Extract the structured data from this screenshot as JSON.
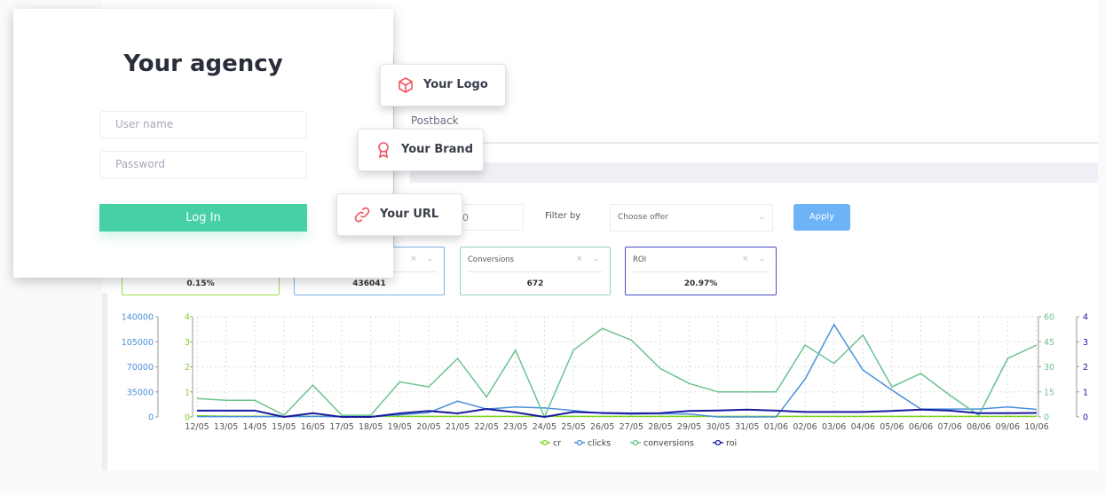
{
  "login": {
    "title": "Your agency",
    "username_placeholder": "User name",
    "password_placeholder": "Password",
    "login_label": "Log In"
  },
  "features": [
    {
      "label": "Your Logo",
      "icon": "cube-icon"
    },
    {
      "label": "Your Brand",
      "icon": "award-ribbon-icon"
    },
    {
      "label": "Your URL",
      "icon": "link-icon"
    }
  ],
  "nav": {
    "postback": "Postback"
  },
  "filters": {
    "partial_value": "0",
    "filter_by_label": "Filter by",
    "offer_select": "Choose offer",
    "apply_label": "Apply"
  },
  "cards": [
    {
      "label": "",
      "value": "0.15%",
      "color": "#9be04a"
    },
    {
      "label": "",
      "value": "436041",
      "color": "#7fb3e6"
    },
    {
      "label": "Conversions",
      "value": "672",
      "color": "#95d6b0"
    },
    {
      "label": "ROI",
      "value": "20.97%",
      "color": "#4a4ac4"
    }
  ],
  "colors": {
    "accent": "#47cfa6",
    "apply": "#6db4f7",
    "icon_red": "#f0545f"
  },
  "chart_data": {
    "type": "line",
    "x": [
      "12/05",
      "13/05",
      "14/05",
      "15/05",
      "16/05",
      "17/05",
      "18/05",
      "19/05",
      "20/05",
      "21/05",
      "22/05",
      "23/05",
      "24/05",
      "25/05",
      "26/05",
      "27/05",
      "28/05",
      "29/05",
      "30/05",
      "31/05",
      "01/06",
      "02/06",
      "03/06",
      "04/06",
      "05/06",
      "06/06",
      "07/06",
      "08/06",
      "09/06",
      "10/06"
    ],
    "axes": {
      "clicks": {
        "range": [
          0,
          140000
        ],
        "ticks": [
          "0",
          "35000",
          "70000",
          "105000",
          "140000"
        ],
        "side": "left-outer",
        "color": "#4a90d9"
      },
      "cr": {
        "range": [
          0,
          4
        ],
        "ticks": [
          "0",
          "1",
          "2",
          "3",
          "4"
        ],
        "side": "left-inner",
        "color": "#7ed321"
      },
      "conversions": {
        "range": [
          0,
          60
        ],
        "ticks": [
          "0",
          "15",
          "30",
          "45",
          "60"
        ],
        "side": "right-inner",
        "color": "#6cc28f"
      },
      "roi": {
        "range": [
          0,
          4
        ],
        "ticks": [
          "0",
          "1",
          "2",
          "3",
          "4"
        ],
        "side": "right-outer",
        "color": "#1a1aa0"
      }
    },
    "grid": true,
    "legend": "bottom",
    "series": [
      {
        "name": "cr",
        "axis": "cr",
        "color": "#7ed321",
        "values": [
          0.05,
          0.03,
          0.03,
          0.02,
          0.03,
          0.02,
          0.02,
          0.02,
          0.02,
          0.02,
          0.02,
          0.02,
          0.02,
          0.02,
          0.02,
          0.02,
          0.02,
          0.02,
          0.02,
          0.02,
          0.02,
          0.02,
          0.02,
          0.02,
          0.02,
          0.02,
          0.02,
          0.02,
          0.02,
          0.02
        ]
      },
      {
        "name": "clicks",
        "axis": "clicks",
        "color": "#4a90d9",
        "values": [
          500,
          500,
          500,
          300,
          800,
          300,
          300,
          3000,
          6000,
          22000,
          11000,
          14000,
          12500,
          9000,
          5000,
          4000,
          4500,
          4000,
          0,
          0,
          0,
          52700,
          129000,
          65600,
          37400,
          11000,
          11000,
          11000,
          14000,
          10500
        ]
      },
      {
        "name": "conversions",
        "axis": "conversions",
        "color": "#6cc28f",
        "values": [
          11,
          10,
          10,
          1,
          19,
          1,
          1,
          21,
          18,
          35,
          12,
          40,
          0,
          40,
          53,
          46,
          29,
          20,
          15,
          15,
          15,
          43,
          32,
          49,
          18,
          26,
          13,
          1,
          35,
          43
        ]
      },
      {
        "name": "roi",
        "axis": "roi",
        "color": "#1a1aa0",
        "values": [
          0.25,
          0.25,
          0.25,
          0,
          0.15,
          0,
          0,
          0.14,
          0.24,
          0.14,
          0.32,
          0.18,
          0,
          0.2,
          0.16,
          0.14,
          0.15,
          0.24,
          0.26,
          0.29,
          0.25,
          0.2,
          0.2,
          0.2,
          0.24,
          0.29,
          0.25,
          0.15,
          0.15,
          0.16
        ]
      }
    ]
  }
}
